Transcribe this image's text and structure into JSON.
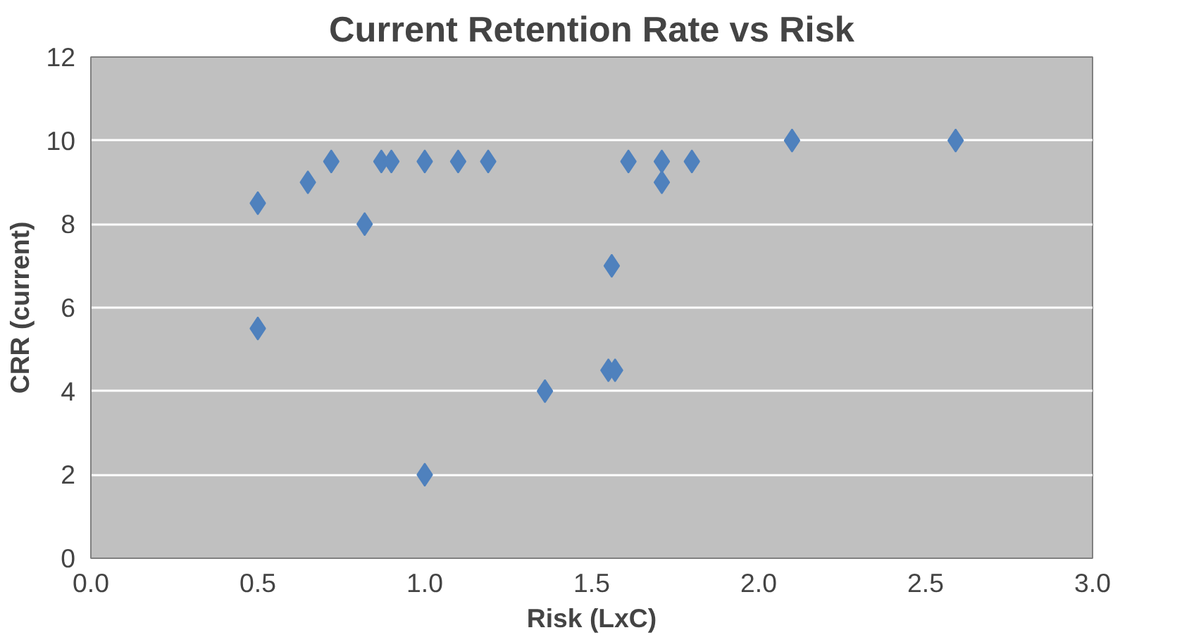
{
  "chart_data": {
    "type": "scatter",
    "title": "Current Retention Rate vs Risk",
    "xlabel": "Risk (LxC)",
    "ylabel": "CRR (current)",
    "x": [
      0.5,
      0.5,
      0.65,
      0.72,
      0.82,
      0.87,
      0.9,
      1.0,
      1.0,
      1.1,
      1.19,
      1.36,
      1.55,
      1.57,
      1.56,
      1.61,
      1.71,
      1.71,
      1.8,
      2.1,
      2.59
    ],
    "series": [
      {
        "color": "#4f81bd",
        "values": [
          8.5,
          5.5,
          9.0,
          9.5,
          8.0,
          9.5,
          9.5,
          9.5,
          2.0,
          9.5,
          9.5,
          4.0,
          4.5,
          4.5,
          7.0,
          9.5,
          9.5,
          9.0,
          9.5,
          10,
          10
        ]
      }
    ],
    "xlim": [
      0,
      3
    ],
    "xticks": [
      {
        "value": 0,
        "label": "0.0"
      },
      {
        "value": 0.5,
        "label": "0.5"
      },
      {
        "value": 1,
        "label": "1.0"
      },
      {
        "value": 1.5,
        "label": "1.5"
      },
      {
        "value": 2,
        "label": "2.0"
      },
      {
        "value": 2.5,
        "label": "2.5"
      },
      {
        "value": 3,
        "label": "3.0"
      }
    ],
    "ylim": [
      0,
      12
    ],
    "yticks": [
      0,
      2,
      4,
      6,
      8,
      10,
      12
    ],
    "grid": "y",
    "marker": "diamond"
  }
}
